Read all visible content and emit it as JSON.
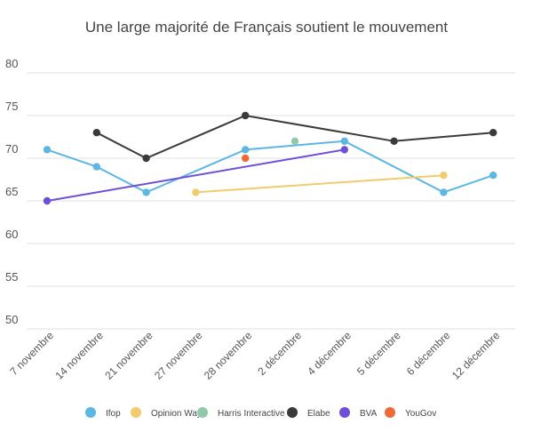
{
  "chart_data": {
    "type": "line",
    "title": "Une large majorité de Français soutient le mouvement",
    "xlabel": "",
    "ylabel": "",
    "ylim": [
      50,
      80
    ],
    "yticks": [
      50,
      55,
      60,
      65,
      70,
      75,
      80
    ],
    "categories": [
      "7 novembre",
      "14 novembre",
      "21 novembre",
      "27 novembre",
      "28 novembre",
      "2 décembre",
      "4 décembre",
      "5 décembre",
      "6 décembre",
      "12 décembre"
    ],
    "grid": true,
    "legend_position": "bottom",
    "series": [
      {
        "name": "Ifop",
        "color": "#5DB7E3",
        "points": [
          {
            "x": "7 novembre",
            "y": 71
          },
          {
            "x": "14 novembre",
            "y": 69
          },
          {
            "x": "21 novembre",
            "y": 66
          },
          {
            "x": "28 novembre",
            "y": 71
          },
          {
            "x": "4 décembre",
            "y": 72
          },
          {
            "x": "6 décembre",
            "y": 66
          },
          {
            "x": "12 décembre",
            "y": 68
          }
        ]
      },
      {
        "name": "Opinion Way",
        "color": "#F0CC6E",
        "points": [
          {
            "x": "27 novembre",
            "y": 66
          },
          {
            "x": "6 décembre",
            "y": 68
          }
        ]
      },
      {
        "name": "Harris Interactive",
        "color": "#8FC9A8",
        "points": [
          {
            "x": "2 décembre",
            "y": 72
          }
        ]
      },
      {
        "name": "Elabe",
        "color": "#3A3A3A",
        "points": [
          {
            "x": "14 novembre",
            "y": 73
          },
          {
            "x": "21 novembre",
            "y": 70
          },
          {
            "x": "28 novembre",
            "y": 75
          },
          {
            "x": "5 décembre",
            "y": 72
          },
          {
            "x": "12 décembre",
            "y": 73
          }
        ]
      },
      {
        "name": "BVA",
        "color": "#6E4FD6",
        "points": [
          {
            "x": "7 novembre",
            "y": 65
          },
          {
            "x": "4 décembre",
            "y": 71
          }
        ]
      },
      {
        "name": "YouGov",
        "color": "#EE6A3A",
        "points": [
          {
            "x": "28 novembre",
            "y": 70
          }
        ]
      }
    ]
  }
}
